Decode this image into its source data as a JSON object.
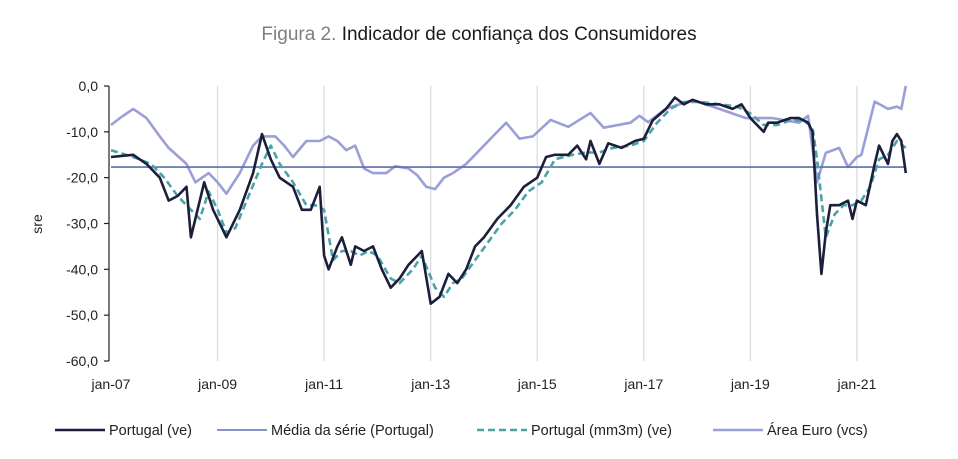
{
  "chart_data": {
    "type": "line",
    "title_prefix": "Figura 2.",
    "title": "Indicador de confiança dos Consumidores",
    "xlabel": "",
    "ylabel": "sre",
    "ylim": [
      -60,
      0
    ],
    "yticks": [
      "0,0",
      "-10,0",
      "-20,0",
      "-30,0",
      "-40,0",
      "-50,0",
      "-60,0"
    ],
    "ytick_values": [
      0,
      -10,
      -20,
      -30,
      -40,
      -50,
      -60
    ],
    "xlim": [
      "2007-01",
      "2021-12"
    ],
    "xticks": [
      "jan-07",
      "jan-09",
      "jan-11",
      "jan-13",
      "jan-15",
      "jan-17",
      "jan-19",
      "jan-21"
    ],
    "xtick_dates": [
      "2007-01",
      "2009-01",
      "2011-01",
      "2013-01",
      "2015-01",
      "2017-01",
      "2019-01",
      "2021-01"
    ],
    "grid": "vertical",
    "legend_placement": "bottom",
    "series": [
      {
        "name": "Portugal (ve)",
        "color": "#1c1f3b",
        "style": "solid",
        "points": [
          [
            "2007-01",
            -15.5
          ],
          [
            "2007-06",
            -15
          ],
          [
            "2007-09",
            -17
          ],
          [
            "2007-12",
            -20
          ],
          [
            "2008-02",
            -25
          ],
          [
            "2008-04",
            -24
          ],
          [
            "2008-06",
            -22
          ],
          [
            "2008-07",
            -33
          ],
          [
            "2008-10",
            -21
          ],
          [
            "2008-12",
            -27
          ],
          [
            "2009-02",
            -31
          ],
          [
            "2009-03",
            -33
          ],
          [
            "2009-06",
            -27
          ],
          [
            "2009-09",
            -19
          ],
          [
            "2009-11",
            -10.5
          ],
          [
            "2010-01",
            -16
          ],
          [
            "2010-03",
            -20
          ],
          [
            "2010-06",
            -22
          ],
          [
            "2010-08",
            -27
          ],
          [
            "2010-10",
            -27
          ],
          [
            "2010-12",
            -22
          ],
          [
            "2011-01",
            -37
          ],
          [
            "2011-02",
            -40
          ],
          [
            "2011-04",
            -35
          ],
          [
            "2011-05",
            -33
          ],
          [
            "2011-07",
            -39
          ],
          [
            "2011-08",
            -35
          ],
          [
            "2011-10",
            -36
          ],
          [
            "2011-12",
            -35
          ],
          [
            "2012-02",
            -40
          ],
          [
            "2012-04",
            -44
          ],
          [
            "2012-06",
            -42
          ],
          [
            "2012-08",
            -39
          ],
          [
            "2012-10",
            -37
          ],
          [
            "2012-11",
            -36
          ],
          [
            "2013-01",
            -47.5
          ],
          [
            "2013-03",
            -46
          ],
          [
            "2013-05",
            -41
          ],
          [
            "2013-07",
            -43
          ],
          [
            "2013-09",
            -40
          ],
          [
            "2013-11",
            -35
          ],
          [
            "2014-01",
            -33
          ],
          [
            "2014-04",
            -29
          ],
          [
            "2014-07",
            -26
          ],
          [
            "2014-10",
            -22
          ],
          [
            "2015-01",
            -20
          ],
          [
            "2015-03",
            -15.5
          ],
          [
            "2015-05",
            -15
          ],
          [
            "2015-08",
            -15
          ],
          [
            "2015-10",
            -13
          ],
          [
            "2015-12",
            -16
          ],
          [
            "2016-01",
            -12
          ],
          [
            "2016-03",
            -17
          ],
          [
            "2016-05",
            -12.5
          ],
          [
            "2016-08",
            -13.5
          ],
          [
            "2016-11",
            -12
          ],
          [
            "2017-01",
            -11.5
          ],
          [
            "2017-03",
            -7.5
          ],
          [
            "2017-06",
            -5
          ],
          [
            "2017-08",
            -2.5
          ],
          [
            "2017-10",
            -4
          ],
          [
            "2017-12",
            -3
          ],
          [
            "2018-03",
            -4
          ],
          [
            "2018-06",
            -4
          ],
          [
            "2018-09",
            -5
          ],
          [
            "2018-11",
            -4
          ],
          [
            "2019-01",
            -7
          ],
          [
            "2019-04",
            -10
          ],
          [
            "2019-05",
            -8
          ],
          [
            "2019-07",
            -8
          ],
          [
            "2019-10",
            -7
          ],
          [
            "2019-12",
            -7
          ],
          [
            "2020-02",
            -8
          ],
          [
            "2020-03",
            -10
          ],
          [
            "2020-04",
            -28
          ],
          [
            "2020-05",
            -41
          ],
          [
            "2020-06",
            -32
          ],
          [
            "2020-07",
            -26
          ],
          [
            "2020-09",
            -26
          ],
          [
            "2020-11",
            -25
          ],
          [
            "2020-12",
            -29
          ],
          [
            "2021-01",
            -25
          ],
          [
            "2021-03",
            -26
          ],
          [
            "2021-05",
            -17
          ],
          [
            "2021-06",
            -13
          ],
          [
            "2021-08",
            -17
          ],
          [
            "2021-09",
            -12
          ],
          [
            "2021-10",
            -10.5
          ],
          [
            "2021-11",
            -12
          ],
          [
            "2021-12",
            -19
          ]
        ]
      },
      {
        "name": "Média da série (Portugal)",
        "color": "#5b6fb0",
        "style": "solid",
        "points": [
          [
            "2007-01",
            -17.7
          ],
          [
            "2021-12",
            -17.7
          ]
        ]
      },
      {
        "name": "Portugal (mm3m) (ve)",
        "color": "#4ba3a8",
        "style": "dashed",
        "points": [
          [
            "2007-01",
            -14
          ],
          [
            "2007-06",
            -15.5
          ],
          [
            "2007-10",
            -17
          ],
          [
            "2008-01",
            -20
          ],
          [
            "2008-04",
            -24
          ],
          [
            "2008-07",
            -27
          ],
          [
            "2008-09",
            -29
          ],
          [
            "2008-11",
            -23
          ],
          [
            "2009-01",
            -27
          ],
          [
            "2009-03",
            -32
          ],
          [
            "2009-05",
            -31
          ],
          [
            "2009-08",
            -24
          ],
          [
            "2009-11",
            -17
          ],
          [
            "2010-01",
            -13
          ],
          [
            "2010-03",
            -17
          ],
          [
            "2010-06",
            -21
          ],
          [
            "2010-09",
            -26
          ],
          [
            "2010-11",
            -26
          ],
          [
            "2011-01",
            -27
          ],
          [
            "2011-03",
            -38
          ],
          [
            "2011-05",
            -36
          ],
          [
            "2011-07",
            -36
          ],
          [
            "2011-09",
            -37
          ],
          [
            "2011-11",
            -36
          ],
          [
            "2012-01",
            -37
          ],
          [
            "2012-04",
            -42
          ],
          [
            "2012-06",
            -43
          ],
          [
            "2012-09",
            -40
          ],
          [
            "2012-11",
            -37
          ],
          [
            "2013-02",
            -44
          ],
          [
            "2013-04",
            -46
          ],
          [
            "2013-06",
            -43
          ],
          [
            "2013-08",
            -42
          ],
          [
            "2013-11",
            -38
          ],
          [
            "2014-02",
            -34
          ],
          [
            "2014-05",
            -30
          ],
          [
            "2014-08",
            -27
          ],
          [
            "2014-11",
            -23
          ],
          [
            "2015-02",
            -21
          ],
          [
            "2015-05",
            -16
          ],
          [
            "2015-09",
            -15
          ],
          [
            "2015-12",
            -14.5
          ],
          [
            "2016-03",
            -14.5
          ],
          [
            "2016-06",
            -13.5
          ],
          [
            "2016-10",
            -13
          ],
          [
            "2017-01",
            -12
          ],
          [
            "2017-04",
            -8
          ],
          [
            "2017-07",
            -5
          ],
          [
            "2017-10",
            -3.5
          ],
          [
            "2018-02",
            -3.5
          ],
          [
            "2018-06",
            -4
          ],
          [
            "2018-10",
            -4.5
          ],
          [
            "2019-01",
            -6
          ],
          [
            "2019-04",
            -8.5
          ],
          [
            "2019-07",
            -8.5
          ],
          [
            "2019-10",
            -7.5
          ],
          [
            "2020-01",
            -7.5
          ],
          [
            "2020-03",
            -9
          ],
          [
            "2020-04",
            -16
          ],
          [
            "2020-06",
            -33
          ],
          [
            "2020-08",
            -28
          ],
          [
            "2020-10",
            -26
          ],
          [
            "2020-12",
            -26
          ],
          [
            "2021-02",
            -25
          ],
          [
            "2021-04",
            -22
          ],
          [
            "2021-06",
            -16
          ],
          [
            "2021-08",
            -15
          ],
          [
            "2021-10",
            -12
          ],
          [
            "2021-12",
            -13.5
          ]
        ]
      },
      {
        "name": "Área Euro (vcs)",
        "color": "#9b9fd8",
        "style": "solid",
        "points": [
          [
            "2007-01",
            -8.5
          ],
          [
            "2007-03",
            -7
          ],
          [
            "2007-06",
            -5
          ],
          [
            "2007-09",
            -7
          ],
          [
            "2007-12",
            -11
          ],
          [
            "2008-02",
            -13.5
          ],
          [
            "2008-06",
            -17
          ],
          [
            "2008-08",
            -21
          ],
          [
            "2008-11",
            -19
          ],
          [
            "2009-01",
            -21
          ],
          [
            "2009-03",
            -23.5
          ],
          [
            "2009-06",
            -19
          ],
          [
            "2009-09",
            -13
          ],
          [
            "2009-11",
            -11
          ],
          [
            "2010-02",
            -11
          ],
          [
            "2010-04",
            -13
          ],
          [
            "2010-06",
            -15.5
          ],
          [
            "2010-09",
            -12
          ],
          [
            "2010-12",
            -12
          ],
          [
            "2011-02",
            -11
          ],
          [
            "2011-04",
            -12
          ],
          [
            "2011-06",
            -14
          ],
          [
            "2011-08",
            -13
          ],
          [
            "2011-10",
            -18
          ],
          [
            "2011-12",
            -19
          ],
          [
            "2012-03",
            -19
          ],
          [
            "2012-05",
            -17.5
          ],
          [
            "2012-08",
            -18
          ],
          [
            "2012-10",
            -19.5
          ],
          [
            "2012-12",
            -22
          ],
          [
            "2013-02",
            -22.5
          ],
          [
            "2013-04",
            -20
          ],
          [
            "2013-06",
            -19
          ],
          [
            "2013-09",
            -17
          ],
          [
            "2013-12",
            -14
          ],
          [
            "2014-03",
            -11
          ],
          [
            "2014-06",
            -8
          ],
          [
            "2014-09",
            -11.5
          ],
          [
            "2014-12",
            -11
          ],
          [
            "2015-04",
            -7.4
          ],
          [
            "2015-08",
            -8.9
          ],
          [
            "2016-01",
            -5.9
          ],
          [
            "2016-04",
            -9.1
          ],
          [
            "2016-10",
            -8
          ],
          [
            "2016-12",
            -6.5
          ],
          [
            "2017-02",
            -7.9
          ],
          [
            "2017-06",
            -4.9
          ],
          [
            "2017-12",
            -3.1
          ],
          [
            "2018-06",
            -5
          ],
          [
            "2018-12",
            -7
          ],
          [
            "2019-06",
            -7
          ],
          [
            "2019-12",
            -8
          ],
          [
            "2020-02",
            -6.5
          ],
          [
            "2020-04",
            -21
          ],
          [
            "2020-06",
            -14.6
          ],
          [
            "2020-09",
            -13.5
          ],
          [
            "2020-11",
            -17.7
          ],
          [
            "2021-01",
            -15.5
          ],
          [
            "2021-02",
            -15
          ],
          [
            "2021-05",
            -3.4
          ],
          [
            "2021-08",
            -5
          ],
          [
            "2021-10",
            -4.5
          ],
          [
            "2021-11",
            -5
          ],
          [
            "2021-12",
            0
          ]
        ]
      }
    ]
  }
}
